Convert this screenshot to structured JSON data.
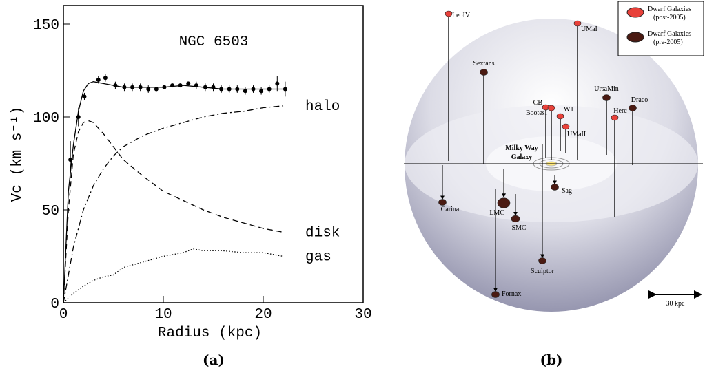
{
  "chart_data": {
    "type": "line",
    "annotation": "NGC 6503",
    "xlabel": "Radius (kpc)",
    "ylabel": "Vc (km s⁻¹)",
    "xlim": [
      0,
      30
    ],
    "xticks": [
      0,
      10,
      20,
      30
    ],
    "ylim": [
      0,
      160
    ],
    "yticks": [
      0,
      50,
      100,
      150
    ],
    "grid": false,
    "series": [
      {
        "kind": "scatter",
        "color": "#000000",
        "x": [
          0.7,
          1.5,
          2.1,
          3.5,
          4.2,
          5.2,
          6.1,
          6.9,
          7.7,
          8.5,
          9.3,
          10.1,
          10.9,
          11.7,
          12.5,
          13.3,
          14.2,
          15.0,
          15.8,
          16.6,
          17.4,
          18.2,
          19.0,
          19.8,
          20.6,
          21.4,
          22.2
        ],
        "values": [
          77,
          100,
          111,
          120,
          121,
          117,
          116,
          116,
          116,
          115,
          115,
          116,
          117,
          117,
          118,
          117,
          116,
          116,
          115,
          115,
          115,
          114,
          115,
          114,
          115,
          118,
          115
        ],
        "errors": [
          10,
          5,
          2,
          2,
          2,
          2,
          2,
          2,
          2,
          2,
          1,
          1,
          1,
          1,
          1,
          2,
          2,
          2,
          2,
          2,
          2,
          2,
          2,
          2,
          2,
          4,
          4
        ]
      },
      {
        "kind": "line",
        "linestyle": "solid",
        "color": "#000000",
        "x": [
          0,
          0.5,
          1,
          1.5,
          2,
          2.5,
          3,
          4,
          5,
          6,
          8,
          10,
          12,
          14,
          16,
          18,
          20,
          22
        ],
        "values": [
          0,
          60,
          85,
          103,
          114,
          118,
          119,
          118,
          117,
          116,
          116,
          116,
          117,
          116,
          115,
          115,
          115,
          115
        ]
      },
      {
        "kind": "line",
        "name": "halo",
        "linestyle": "dashdot",
        "color": "#000000",
        "x": [
          0,
          1,
          2,
          3,
          4,
          5,
          6,
          8,
          10,
          12,
          14,
          16,
          18,
          20,
          22
        ],
        "values": [
          0,
          30,
          50,
          63,
          72,
          79,
          84,
          90,
          94,
          97,
          100,
          102,
          103,
          105,
          106
        ]
      },
      {
        "kind": "line",
        "name": "disk",
        "linestyle": "dashed",
        "color": "#000000",
        "x": [
          0,
          0.5,
          1,
          1.5,
          2,
          2.5,
          3,
          4,
          5,
          6,
          8,
          10,
          12,
          14,
          16,
          18,
          20,
          22
        ],
        "values": [
          0,
          50,
          80,
          92,
          97,
          98,
          97,
          91,
          84,
          77,
          68,
          60,
          55,
          50,
          46,
          43,
          40,
          38
        ]
      },
      {
        "kind": "line",
        "name": "gas",
        "linestyle": "dotted",
        "color": "#000000",
        "x": [
          0,
          1,
          2,
          3,
          4,
          5,
          6,
          8,
          10,
          12,
          13,
          14,
          16,
          18,
          20,
          22
        ],
        "values": [
          0,
          5,
          9,
          12,
          14,
          15,
          19,
          22,
          25,
          27,
          29,
          28,
          28,
          27,
          27,
          25
        ]
      }
    ]
  },
  "panels": {
    "a": "(a)",
    "b": "(b)"
  },
  "diagram": {
    "center_label": [
      "Milky Way",
      "Galaxy"
    ],
    "scale_label": "30 kpc",
    "legend": [
      {
        "lines": [
          "Dwarf Galaxies",
          "(post-2005)"
        ],
        "color": "#e8413a"
      },
      {
        "lines": [
          "Dwarf Galaxies",
          "(pre-2005)"
        ],
        "color": "#4a1a12"
      }
    ],
    "galaxies": [
      {
        "label": "LeoIV",
        "group": 0
      },
      {
        "label": "UMaI",
        "group": 0
      },
      {
        "label": "Sextans",
        "group": 1
      },
      {
        "label": "CB",
        "group": 0
      },
      {
        "label": "BootesI",
        "group": 0
      },
      {
        "label": "W1",
        "group": 0
      },
      {
        "label": "UMaII",
        "group": 0
      },
      {
        "label": "UrsaMin",
        "group": 1
      },
      {
        "label": "Draco",
        "group": 1
      },
      {
        "label": "Herc",
        "group": 0
      },
      {
        "label": "Sag",
        "group": 1
      },
      {
        "label": "Carina",
        "group": 1
      },
      {
        "label": "LMC",
        "group": 1
      },
      {
        "label": "SMC",
        "group": 1
      },
      {
        "label": "Sculptor",
        "group": 1
      },
      {
        "label": "Fornax",
        "group": 1
      }
    ]
  }
}
